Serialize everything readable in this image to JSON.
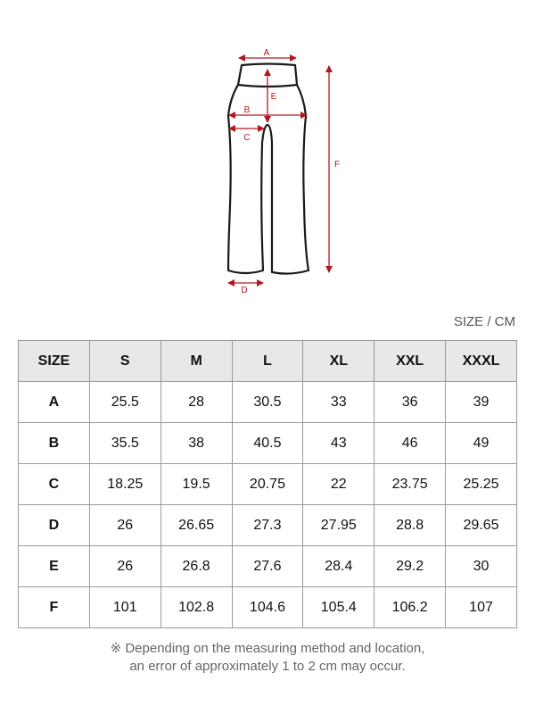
{
  "diagram": {
    "labels": [
      "A",
      "B",
      "C",
      "D",
      "E",
      "F"
    ],
    "accent_color": "#b0181e"
  },
  "unit_label": "SIZE / CM",
  "table": {
    "headers": [
      "SIZE",
      "S",
      "M",
      "L",
      "XL",
      "XXL",
      "XXXL"
    ],
    "rows": [
      [
        "A",
        "25.5",
        "28",
        "30.5",
        "33",
        "36",
        "39"
      ],
      [
        "B",
        "35.5",
        "38",
        "40.5",
        "43",
        "46",
        "49"
      ],
      [
        "C",
        "18.25",
        "19.5",
        "20.75",
        "22",
        "23.75",
        "25.25"
      ],
      [
        "D",
        "26",
        "26.65",
        "27.3",
        "27.95",
        "28.8",
        "29.65"
      ],
      [
        "E",
        "26",
        "26.8",
        "27.6",
        "28.4",
        "29.2",
        "30"
      ],
      [
        "F",
        "101",
        "102.8",
        "104.6",
        "105.4",
        "106.2",
        "107"
      ]
    ]
  },
  "note": {
    "line1": "※ Depending on the measuring method and location,",
    "line2": "an error of approximately 1 to 2 cm may occur."
  }
}
